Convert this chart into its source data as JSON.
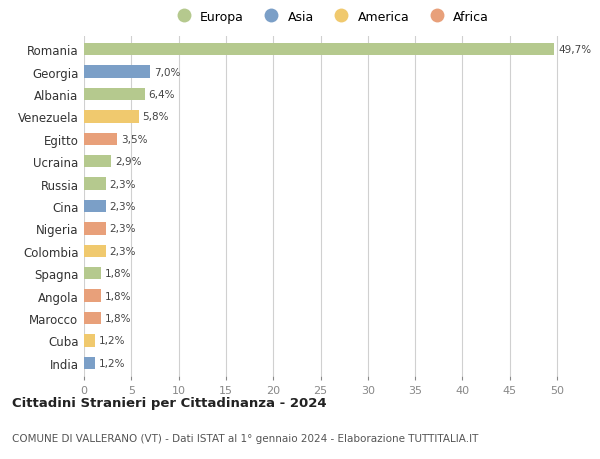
{
  "countries": [
    "Romania",
    "Georgia",
    "Albania",
    "Venezuela",
    "Egitto",
    "Ucraina",
    "Russia",
    "Cina",
    "Nigeria",
    "Colombia",
    "Spagna",
    "Angola",
    "Marocco",
    "Cuba",
    "India"
  ],
  "values": [
    49.7,
    7.0,
    6.4,
    5.8,
    3.5,
    2.9,
    2.3,
    2.3,
    2.3,
    2.3,
    1.8,
    1.8,
    1.8,
    1.2,
    1.2
  ],
  "labels": [
    "49,7%",
    "7,0%",
    "6,4%",
    "5,8%",
    "3,5%",
    "2,9%",
    "2,3%",
    "2,3%",
    "2,3%",
    "2,3%",
    "1,8%",
    "1,8%",
    "1,8%",
    "1,2%",
    "1,2%"
  ],
  "continents": [
    "Europa",
    "Asia",
    "Europa",
    "America",
    "Africa",
    "Europa",
    "Europa",
    "Asia",
    "Africa",
    "America",
    "Europa",
    "Africa",
    "Africa",
    "America",
    "Asia"
  ],
  "colors": {
    "Europa": "#b5c98e",
    "Asia": "#7b9fc7",
    "America": "#f0c96e",
    "Africa": "#e8a07a"
  },
  "legend_order": [
    "Europa",
    "Asia",
    "America",
    "Africa"
  ],
  "xlim": [
    0,
    52
  ],
  "xticks": [
    0,
    5,
    10,
    15,
    20,
    25,
    30,
    35,
    40,
    45,
    50
  ],
  "title": "Cittadini Stranieri per Cittadinanza - 2024",
  "subtitle": "COMUNE DI VALLERANO (VT) - Dati ISTAT al 1° gennaio 2024 - Elaborazione TUTTITALIA.IT",
  "bg_color": "#ffffff",
  "grid_color": "#d0d0d0",
  "bar_height": 0.55
}
